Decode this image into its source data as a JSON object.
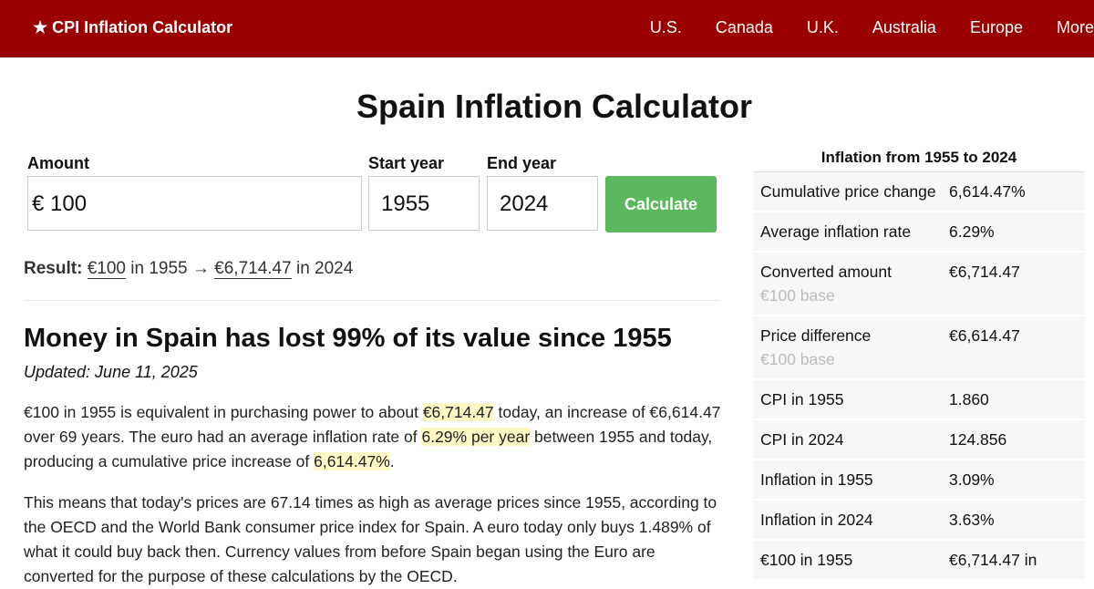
{
  "nav": {
    "brand": "★ CPI Inflation Calculator",
    "links": [
      "U.S.",
      "Canada",
      "U.K.",
      "Australia",
      "Europe",
      "More"
    ]
  },
  "title": "Spain Inflation Calculator",
  "form": {
    "amount_label": "Amount",
    "currency": "€",
    "amount": "100",
    "start_label": "Start year",
    "start": "1955",
    "end_label": "End year",
    "end": "2024",
    "button": "Calculate"
  },
  "result": {
    "label": "Result:",
    "from_amount": "€100",
    "from_year": "in 1955",
    "arrow": "→",
    "to_amount": "€6,714.47",
    "to_year": "in 2024"
  },
  "article": {
    "heading": "Money in Spain has lost 99% of its value since 1955",
    "updated": "Updated: June 11, 2025",
    "paragraph1": [
      "€100 in 1955 is equivalent in purchasing power to about ",
      "€6,714.47",
      " today, an increase of €6,614.47 over 69 years. The euro had an average inflation rate of ",
      "6.29% per year",
      " between 1955 and today, producing a cumulative price increase of ",
      "6,614.47%",
      "."
    ],
    "paragraph2": "This means that today's prices are 67.14 times as high as average prices since 1955, according to the OECD and the World Bank consumer price index for Spain. A euro today only buys 1.489% of what it could buy back then. Currency values from before Spain began using the Euro are converted for the purpose of these calculations by the OECD."
  },
  "table": {
    "title": "Inflation from 1955 to 2024",
    "rows": [
      {
        "label": "Cumulative price change",
        "value": "6,614.47%"
      },
      {
        "label": "Average inflation rate",
        "value": "6.29%"
      },
      {
        "label": "Converted amount",
        "note": "€100 base",
        "value": "€6,714.47"
      },
      {
        "label": "Price difference",
        "note": "€100 base",
        "value": "€6,614.47"
      },
      {
        "label": "CPI in 1955",
        "value": "1.860"
      },
      {
        "label": "CPI in 2024",
        "value": "124.856"
      },
      {
        "label": "Inflation in 1955",
        "value": "3.09%"
      },
      {
        "label": "Inflation in 2024",
        "value": "3.63%"
      },
      {
        "label": "€100 in 1955",
        "value": "€6,714.47 in"
      }
    ]
  }
}
